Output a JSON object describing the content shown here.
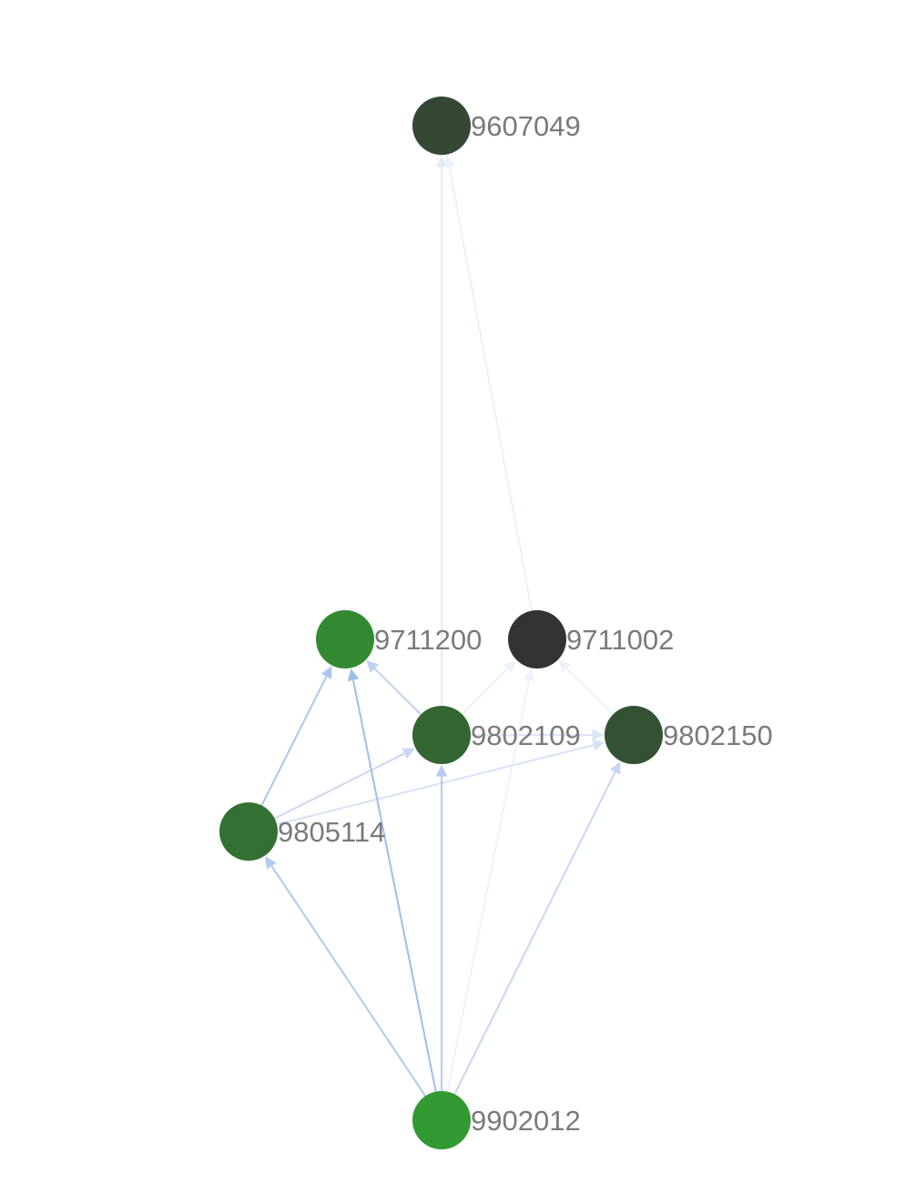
{
  "nodes": [
    {
      "id": "9607049",
      "label": "9607049",
      "color": "#344834"
    },
    {
      "id": "9711200",
      "label": "9711200",
      "color": "#338a33"
    },
    {
      "id": "9711002",
      "label": "9711002",
      "color": "#333333"
    },
    {
      "id": "9802109",
      "label": "9802109",
      "color": "#336633"
    },
    {
      "id": "9802150",
      "label": "9802150",
      "color": "#345134"
    },
    {
      "id": "9805114",
      "label": "9805114",
      "color": "#337033"
    },
    {
      "id": "9902012",
      "label": "9902012",
      "color": "#339933"
    }
  ],
  "edges": [
    {
      "from": "9802109",
      "to": "9607049",
      "color": "#e4ecf7"
    },
    {
      "from": "9711002",
      "to": "9607049",
      "color": "#eaf0f9"
    },
    {
      "from": "9802109",
      "to": "9711200",
      "color": "#bfd2f0"
    },
    {
      "from": "9802109",
      "to": "9711002",
      "color": "#edf2fa"
    },
    {
      "from": "9802150",
      "to": "9711002",
      "color": "#edf2fa"
    },
    {
      "from": "9802109",
      "to": "9802150",
      "color": "#dbe5f5"
    },
    {
      "from": "9805114",
      "to": "9711200",
      "color": "#aec6ee"
    },
    {
      "from": "9805114",
      "to": "9802109",
      "color": "#c8d8f3"
    },
    {
      "from": "9805114",
      "to": "9802150",
      "color": "#d6e2f6"
    },
    {
      "from": "9902012",
      "to": "9805114",
      "color": "#b3c9ef"
    },
    {
      "from": "9902012",
      "to": "9711200",
      "color": "#a3bde9"
    },
    {
      "from": "9902012",
      "to": "9802109",
      "color": "#b6cbef"
    },
    {
      "from": "9902012",
      "to": "9711002",
      "color": "#eef2fa"
    },
    {
      "from": "9902012",
      "to": "9802150",
      "color": "#c7d7f3"
    }
  ]
}
